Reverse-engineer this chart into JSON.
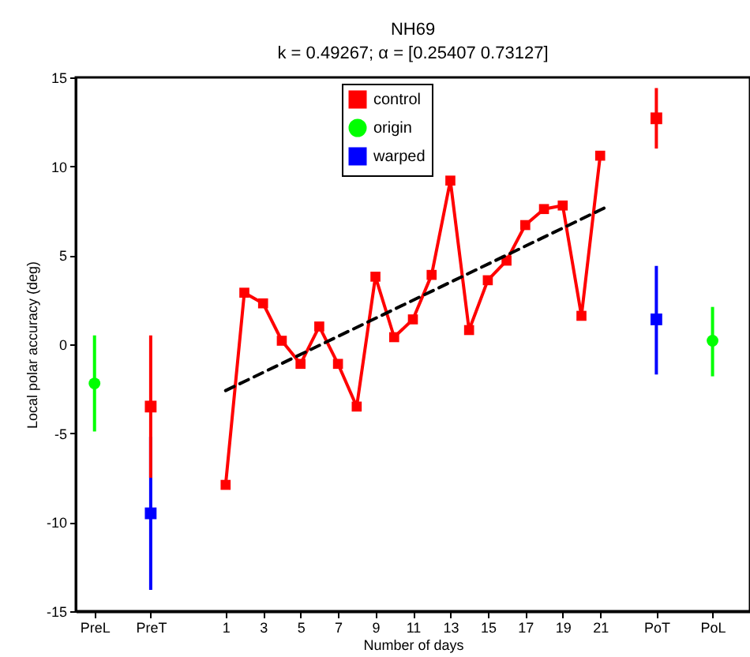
{
  "chart_data": {
    "type": "line",
    "title": "NH69",
    "subtitle": "k =  0.49267; α = [0.25407      0.73127]",
    "xlabel": "Number of days",
    "ylabel": "Local polar accuracy (deg)",
    "xlim": [
      -7,
      29
    ],
    "xticks": [
      {
        "value": -6,
        "label": "PreL"
      },
      {
        "value": -3,
        "label": "PreT"
      },
      1,
      3,
      5,
      7,
      9,
      11,
      13,
      15,
      17,
      19,
      21,
      {
        "value": 24,
        "label": "PoT"
      },
      {
        "value": 27,
        "label": "PoL"
      }
    ],
    "ylim": [
      -15,
      15
    ],
    "yticks": [
      -15,
      -10,
      -5,
      0,
      5,
      10,
      15
    ],
    "grid": false,
    "legend": "top",
    "series": [
      {
        "name": "control",
        "color": "#ff0000",
        "marker": "square",
        "x": [
          1,
          2,
          3,
          4,
          5,
          6,
          7,
          8,
          9,
          10,
          11,
          12,
          13,
          14,
          15,
          16,
          17,
          18,
          19,
          20,
          21
        ],
        "values": [
          -7.9,
          2.9,
          2.3,
          0.2,
          -1.1,
          1.0,
          -1.1,
          -3.5,
          3.8,
          0.4,
          1.4,
          3.9,
          9.2,
          0.8,
          3.6,
          4.7,
          6.7,
          7.6,
          7.8,
          1.6,
          10.6
        ]
      },
      {
        "name": "origin",
        "type": "scatter",
        "color": "#00ff00",
        "marker": "circle",
        "x": [
          -6,
          27
        ],
        "values": [
          -2.2,
          0.2
        ],
        "errors": [
          [
            -4.9,
            0.5
          ],
          [
            -1.8,
            2.1
          ]
        ]
      },
      {
        "name": "warped",
        "type": "scatter",
        "color": "#0000ff",
        "marker": "square",
        "x": [
          -3,
          24
        ],
        "values": [
          -9.5,
          1.4
        ],
        "errors": [
          [
            -13.8,
            -5.2
          ],
          [
            -1.7,
            4.4
          ]
        ]
      },
      {
        "type": "scatter",
        "color": "#ff0000",
        "marker": "square",
        "x": [
          -3,
          24
        ],
        "values": [
          -3.5,
          12.7
        ],
        "errors": [
          [
            -7.5,
            0.5
          ],
          [
            11.0,
            14.4
          ]
        ]
      },
      {
        "type": "line",
        "color": "#000000",
        "marker": "none",
        "line_style": "dashed",
        "x": [
          1,
          21.5
        ],
        "values": [
          -2.6,
          7.8
        ]
      }
    ]
  }
}
